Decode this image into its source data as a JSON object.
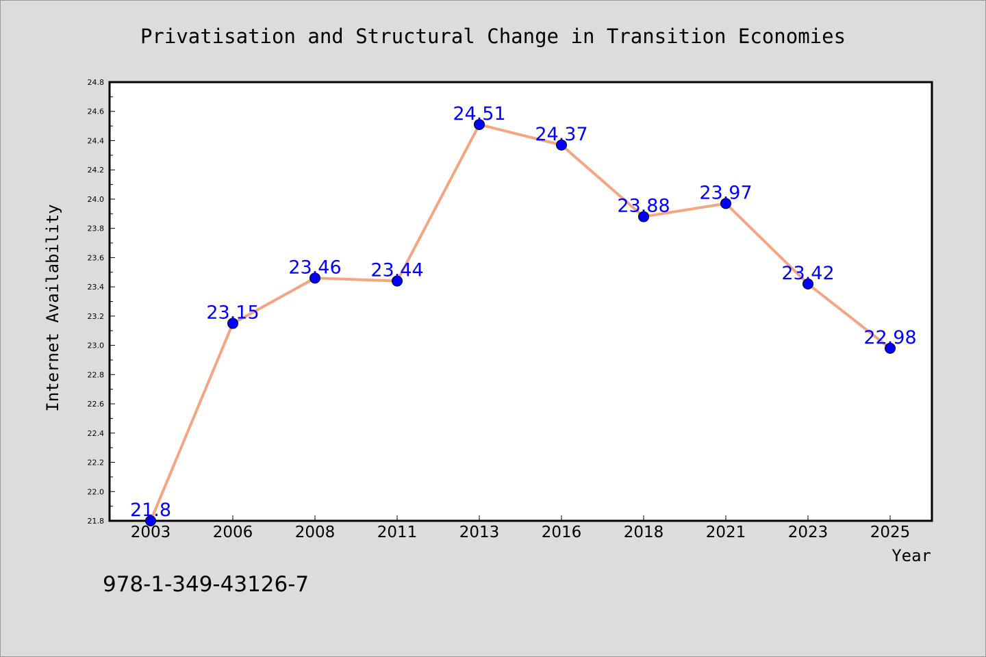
{
  "chart_data": {
    "type": "line",
    "title": "Privatisation and Structural Change in Transition Economies",
    "xlabel": "Year",
    "ylabel": "Internet Availability",
    "categories": [
      "2003",
      "2006",
      "2008",
      "2011",
      "2013",
      "2016",
      "2018",
      "2021",
      "2023",
      "2025"
    ],
    "series": [
      {
        "values": [
          21.8,
          23.15,
          23.46,
          23.44,
          24.51,
          24.37,
          23.88,
          23.97,
          23.42,
          22.98
        ]
      }
    ],
    "data_labels": [
      "21.8",
      "23.15",
      "23.46",
      "23.44",
      "24.51",
      "24.37",
      "23.88",
      "23.97",
      "23.42",
      "22.98"
    ],
    "ylim": [
      21.8,
      24.8
    ],
    "yticks": [
      "21.8",
      "22.0",
      "22.2",
      "22.4",
      "22.6",
      "22.8",
      "23.0",
      "23.2",
      "23.4",
      "23.6",
      "23.8",
      "24.0",
      "24.2",
      "24.4",
      "24.6",
      "24.8"
    ],
    "grid": false,
    "colors": {
      "line": "#f4a582",
      "marker": "#0000ff",
      "label": "#0000ff",
      "plot_bg": "#ffffff",
      "page_bg": "#dcdcdc"
    }
  },
  "footer": {
    "isbn": "978-1-349-43126-7"
  }
}
